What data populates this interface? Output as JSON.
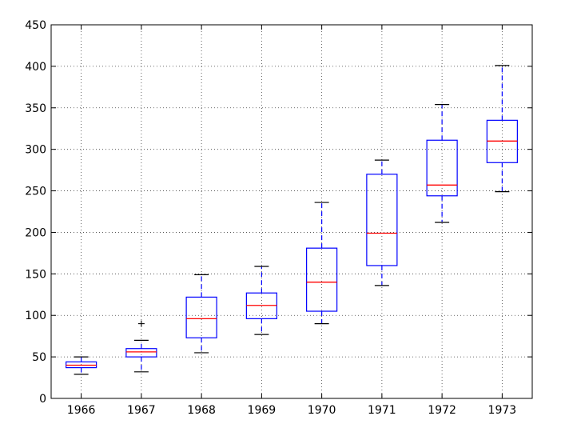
{
  "chart_data": {
    "type": "boxplot",
    "title": "",
    "xlabel": "",
    "ylabel": "",
    "ylim": [
      0,
      450
    ],
    "yticks": [
      0,
      50,
      100,
      150,
      200,
      250,
      300,
      350,
      400,
      450
    ],
    "grid": true,
    "categories": [
      "1966",
      "1967",
      "1968",
      "1969",
      "1970",
      "1971",
      "1972",
      "1973"
    ],
    "boxes": [
      {
        "label": "1966",
        "min": 29,
        "q1": 37,
        "median": 40,
        "q3": 44,
        "max": 50,
        "outliers": []
      },
      {
        "label": "1967",
        "min": 32,
        "q1": 50,
        "median": 56,
        "q3": 60,
        "max": 70,
        "outliers": [
          90
        ]
      },
      {
        "label": "1968",
        "min": 55,
        "q1": 73,
        "median": 96,
        "q3": 122,
        "max": 149,
        "outliers": []
      },
      {
        "label": "1969",
        "min": 77,
        "q1": 96,
        "median": 112,
        "q3": 127,
        "max": 159,
        "outliers": []
      },
      {
        "label": "1970",
        "min": 90,
        "q1": 105,
        "median": 140,
        "q3": 181,
        "max": 236,
        "outliers": []
      },
      {
        "label": "1971",
        "min": 136,
        "q1": 160,
        "median": 199,
        "q3": 270,
        "max": 287,
        "outliers": []
      },
      {
        "label": "1972",
        "min": 212,
        "q1": 244,
        "median": 257,
        "q3": 311,
        "max": 354,
        "outliers": []
      },
      {
        "label": "1973",
        "min": 249,
        "q1": 284,
        "median": 310,
        "q3": 335,
        "max": 401,
        "outliers": []
      }
    ],
    "colors": {
      "box": "#0000ff",
      "median": "#ff0000",
      "cap": "#000000"
    }
  }
}
